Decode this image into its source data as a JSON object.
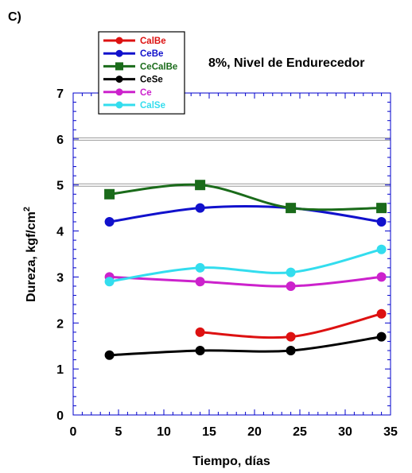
{
  "panel_label": "C)",
  "chart_data": {
    "type": "line",
    "title": "8%, Nivel de Endurecedor",
    "xlabel": "Tiempo, días",
    "ylabel": "Dureza, kgf/cm",
    "ylabel_superscript": "2",
    "xlim": [
      0,
      35
    ],
    "ylim": [
      0,
      7
    ],
    "xticks": [
      0,
      5,
      10,
      15,
      20,
      25,
      30,
      35
    ],
    "yticks": [
      0,
      1,
      2,
      3,
      4,
      5,
      6,
      7
    ],
    "reference_lines_y": [
      5,
      6
    ],
    "grid": false,
    "legend_position": "top-left",
    "series": [
      {
        "name": "CalBe",
        "color": "#dd1111",
        "marker": "circle",
        "x": [
          14,
          24,
          34
        ],
        "y": [
          1.8,
          1.7,
          2.2
        ]
      },
      {
        "name": "CeBe",
        "color": "#1111cc",
        "marker": "circle",
        "x": [
          4,
          14,
          24,
          34
        ],
        "y": [
          4.2,
          4.5,
          4.5,
          4.2
        ]
      },
      {
        "name": "CeCalBe",
        "color": "#1a6b1a",
        "marker": "square",
        "x": [
          4,
          14,
          24,
          34
        ],
        "y": [
          4.8,
          5.0,
          4.5,
          4.5
        ]
      },
      {
        "name": "CeSe",
        "color": "#000000",
        "marker": "circle",
        "x": [
          4,
          14,
          24,
          34
        ],
        "y": [
          1.3,
          1.4,
          1.4,
          1.7
        ]
      },
      {
        "name": "Ce",
        "color": "#cc22cc",
        "marker": "circle",
        "x": [
          4,
          14,
          24,
          34
        ],
        "y": [
          3.0,
          2.9,
          2.8,
          3.0
        ]
      },
      {
        "name": "CalSe",
        "color": "#33ddee",
        "marker": "circle",
        "x": [
          4,
          14,
          24,
          34
        ],
        "y": [
          2.9,
          3.2,
          3.1,
          3.6
        ]
      }
    ]
  }
}
